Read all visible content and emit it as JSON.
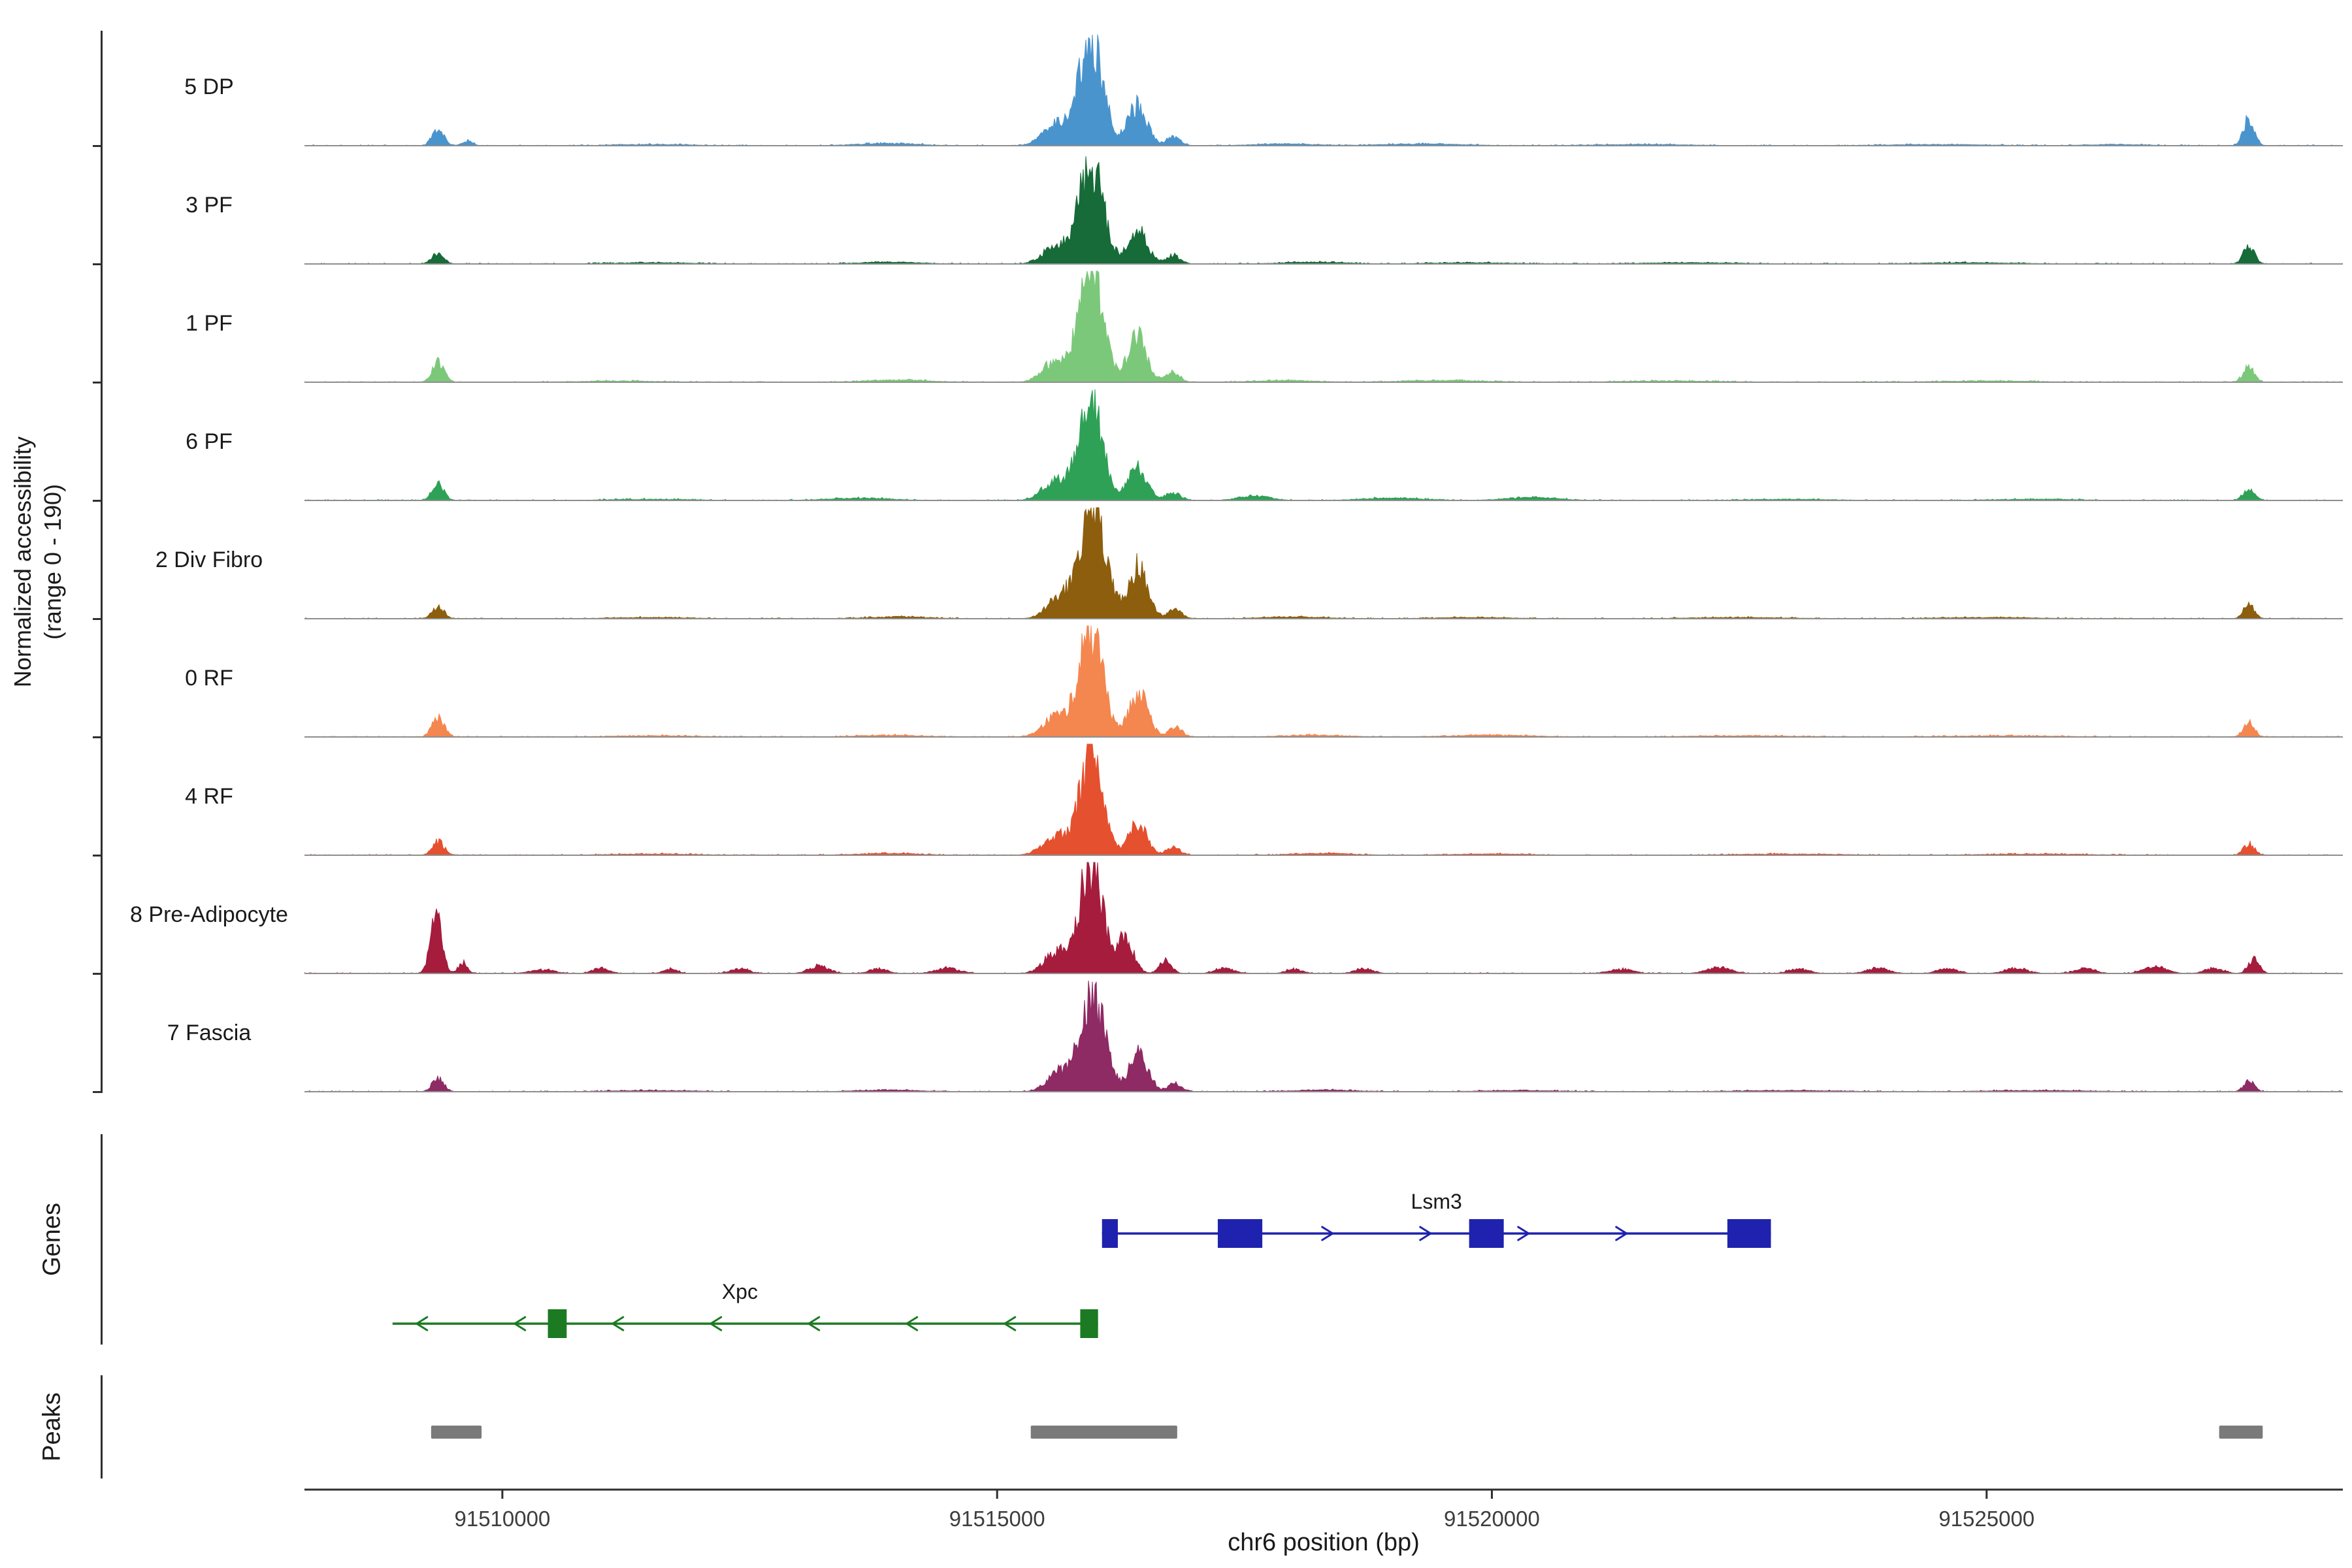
{
  "figure": {
    "y_axis_label_line1": "Normalized accessibility",
    "y_axis_label_line2": "(range 0 - 190)",
    "genes_section_label": "Genes",
    "peaks_section_label": "Peaks",
    "x_axis_title": "chr6 position (bp)"
  },
  "chart_data": {
    "type": "area",
    "title": "",
    "xlabel": "chr6 position (bp)",
    "ylabel": "Normalized accessibility (range 0 - 190)",
    "x_range": [
      91508000,
      91528600
    ],
    "x_ticks": [
      91510000,
      91515000,
      91520000,
      91525000
    ],
    "ylim": [
      0,
      190
    ],
    "grid": false,
    "tracks": [
      {
        "label": "5 DP",
        "color": "#4a94cd",
        "bumps": [
          [
            91509350,
            60,
            26
          ],
          [
            91509650,
            50,
            8
          ],
          [
            91511500,
            400,
            2
          ],
          [
            91513900,
            300,
            4
          ],
          [
            91515600,
            130,
            35
          ],
          [
            91515950,
            120,
            178
          ],
          [
            91516420,
            95,
            68
          ],
          [
            91516780,
            70,
            15
          ],
          [
            91517900,
            300,
            3
          ],
          [
            91519300,
            400,
            3
          ],
          [
            91521500,
            500,
            2
          ],
          [
            91524500,
            500,
            2
          ],
          [
            91526300,
            300,
            2
          ],
          [
            91527650,
            55,
            46
          ]
        ]
      },
      {
        "label": "3 PF",
        "color": "#166b38",
        "bumps": [
          [
            91509350,
            60,
            18
          ],
          [
            91511500,
            400,
            2
          ],
          [
            91513900,
            300,
            3
          ],
          [
            91515600,
            130,
            32
          ],
          [
            91515950,
            120,
            172
          ],
          [
            91516420,
            95,
            60
          ],
          [
            91516780,
            70,
            14
          ],
          [
            91518200,
            300,
            3
          ],
          [
            91519800,
            400,
            2
          ],
          [
            91522000,
            500,
            2
          ],
          [
            91524800,
            500,
            2
          ],
          [
            91527650,
            55,
            30
          ]
        ]
      },
      {
        "label": "1 PF",
        "color": "#7cc87a",
        "bumps": [
          [
            91509350,
            60,
            36
          ],
          [
            91511200,
            400,
            2
          ],
          [
            91514000,
            300,
            4
          ],
          [
            91515600,
            130,
            38
          ],
          [
            91515950,
            120,
            183
          ],
          [
            91516420,
            95,
            76
          ],
          [
            91516780,
            70,
            16
          ],
          [
            91517900,
            300,
            3
          ],
          [
            91519500,
            400,
            3
          ],
          [
            91521800,
            500,
            2
          ],
          [
            91525000,
            500,
            2
          ],
          [
            91527650,
            55,
            25
          ]
        ]
      },
      {
        "label": "6 PF",
        "color": "#2fa156",
        "bumps": [
          [
            91509350,
            60,
            28
          ],
          [
            91511500,
            400,
            2
          ],
          [
            91513600,
            300,
            4
          ],
          [
            91515600,
            130,
            34
          ],
          [
            91515950,
            120,
            162
          ],
          [
            91516420,
            95,
            56
          ],
          [
            91516780,
            70,
            14
          ],
          [
            91517600,
            150,
            8
          ],
          [
            91519000,
            300,
            4
          ],
          [
            91520400,
            250,
            5
          ],
          [
            91523000,
            400,
            2
          ],
          [
            91525500,
            400,
            2
          ],
          [
            91527650,
            55,
            22
          ]
        ]
      },
      {
        "label": "2 Div Fibro",
        "color": "#8c5e0d",
        "bumps": [
          [
            91509350,
            60,
            21
          ],
          [
            91511500,
            400,
            2
          ],
          [
            91514000,
            300,
            3
          ],
          [
            91515650,
            130,
            40
          ],
          [
            91515980,
            125,
            184
          ],
          [
            91516430,
            95,
            88
          ],
          [
            91516800,
            70,
            15
          ],
          [
            91518000,
            300,
            3
          ],
          [
            91519800,
            400,
            2
          ],
          [
            91522500,
            500,
            2
          ],
          [
            91525000,
            500,
            2
          ],
          [
            91527650,
            55,
            24
          ]
        ]
      },
      {
        "label": "0 RF",
        "color": "#f4864f",
        "bumps": [
          [
            91509350,
            60,
            33
          ],
          [
            91511500,
            400,
            2
          ],
          [
            91513900,
            300,
            3
          ],
          [
            91515600,
            130,
            36
          ],
          [
            91515950,
            120,
            179
          ],
          [
            91516430,
            95,
            72
          ],
          [
            91516800,
            70,
            15
          ],
          [
            91518200,
            300,
            3
          ],
          [
            91520000,
            400,
            3
          ],
          [
            91522500,
            500,
            2
          ],
          [
            91525200,
            500,
            2
          ],
          [
            91527650,
            55,
            25
          ]
        ]
      },
      {
        "label": "4 RF",
        "color": "#e5502f",
        "bumps": [
          [
            91509350,
            60,
            23
          ],
          [
            91511500,
            400,
            2
          ],
          [
            91513900,
            300,
            3
          ],
          [
            91515600,
            130,
            33
          ],
          [
            91515950,
            115,
            173
          ],
          [
            91516420,
            90,
            56
          ],
          [
            91516780,
            70,
            13
          ],
          [
            91518300,
            300,
            3
          ],
          [
            91520000,
            400,
            2
          ],
          [
            91523000,
            500,
            2
          ],
          [
            91525500,
            500,
            2
          ],
          [
            91527650,
            55,
            19
          ]
        ]
      },
      {
        "label": "8 Pre-Adipocyte",
        "color": "#a51c3d",
        "bumps": [
          [
            91509330,
            55,
            112
          ],
          [
            91509600,
            45,
            18
          ],
          [
            91510400,
            120,
            6
          ],
          [
            91511000,
            80,
            9
          ],
          [
            91511700,
            70,
            7
          ],
          [
            91512400,
            90,
            8
          ],
          [
            91513200,
            100,
            12
          ],
          [
            91513800,
            90,
            8
          ],
          [
            91514500,
            120,
            9
          ],
          [
            91515600,
            120,
            36
          ],
          [
            91515950,
            115,
            186
          ],
          [
            91516300,
            80,
            60
          ],
          [
            91516700,
            60,
            22
          ],
          [
            91517300,
            90,
            9
          ],
          [
            91518000,
            80,
            7
          ],
          [
            91518700,
            90,
            8
          ],
          [
            91521300,
            120,
            7
          ],
          [
            91522300,
            120,
            10
          ],
          [
            91523100,
            100,
            8
          ],
          [
            91523900,
            110,
            9
          ],
          [
            91524600,
            100,
            8
          ],
          [
            91525300,
            110,
            9
          ],
          [
            91526000,
            100,
            8
          ],
          [
            91526700,
            110,
            12
          ],
          [
            91527300,
            90,
            9
          ],
          [
            91527700,
            55,
            23
          ]
        ]
      },
      {
        "label": "7 Fascia",
        "color": "#8e2a64",
        "bumps": [
          [
            91509350,
            60,
            22
          ],
          [
            91511500,
            400,
            2
          ],
          [
            91513900,
            300,
            3
          ],
          [
            91515650,
            130,
            34
          ],
          [
            91515970,
            120,
            164
          ],
          [
            91516430,
            95,
            62
          ],
          [
            91516800,
            70,
            14
          ],
          [
            91518300,
            300,
            3
          ],
          [
            91520300,
            400,
            2
          ],
          [
            91523000,
            500,
            2
          ],
          [
            91525500,
            500,
            2
          ],
          [
            91527650,
            55,
            18
          ]
        ]
      }
    ],
    "genes": [
      {
        "name": "Lsm3",
        "strand": "+",
        "color": "#1f22ae",
        "start": 91516060,
        "end": 91522820,
        "exons": [
          [
            91516060,
            91516220
          ],
          [
            91517230,
            91517680
          ],
          [
            91519770,
            91520120
          ],
          [
            91522380,
            91522820
          ]
        ],
        "label_bp": 91519440
      },
      {
        "name": "Xpc",
        "strand": "-",
        "color": "#1c7a22",
        "start": 91508890,
        "end": 91516020,
        "exons": [
          [
            91510460,
            91510650
          ],
          [
            91515840,
            91516020
          ]
        ],
        "label_bp": 91512400
      }
    ],
    "peaks": {
      "color": "#7a7a7a",
      "regions": [
        [
          91509280,
          91509790
        ],
        [
          91515340,
          91516820
        ],
        [
          91527350,
          91527790
        ]
      ]
    }
  }
}
